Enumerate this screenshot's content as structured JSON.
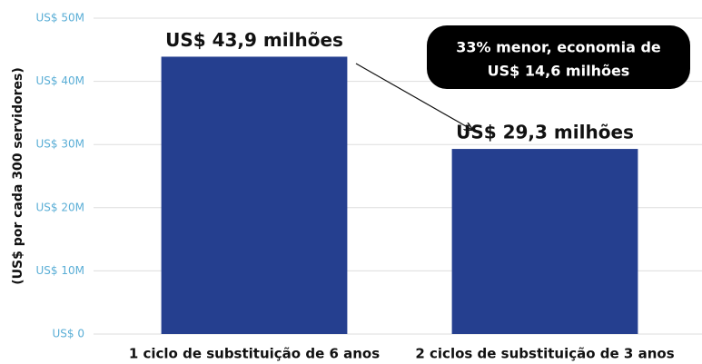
{
  "chart_data": {
    "type": "bar",
    "y_axis_label": "(US$ por cada 300 servidores)",
    "categories": [
      "1 ciclo de substituição de 6 anos",
      "2 ciclos de substituição de 3 anos"
    ],
    "values": [
      43.9,
      29.3
    ],
    "value_labels": [
      "US$ 43,9 milhões",
      "US$ 29,3 milhões"
    ],
    "color": "#253f8f",
    "ylim": [
      0,
      50
    ],
    "yticks": [
      {
        "value": 0,
        "label": "US$ 0"
      },
      {
        "value": 10,
        "label": "US$ 10M"
      },
      {
        "value": 20,
        "label": "US$ 20M"
      },
      {
        "value": 30,
        "label": "US$ 30M"
      },
      {
        "value": 40,
        "label": "US$ 40M"
      },
      {
        "value": 50,
        "label": "US$ 50M"
      }
    ],
    "grid": true,
    "annotation": [
      "33% menor, economia de",
      "US$ 14,6 milhões"
    ]
  }
}
